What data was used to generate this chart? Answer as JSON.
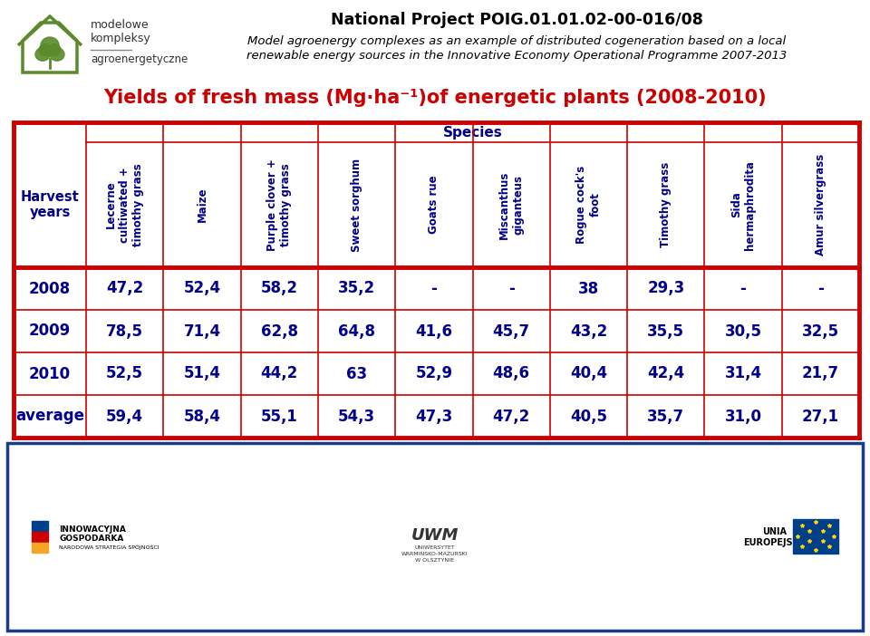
{
  "title_line1": "National Project POIG.01.01.02-00-016/08",
  "title_line2": "Model agroenergy complexes as an example of distributed cogeneration based on a local",
  "title_line3": "renewable energy sources in the Innovative Economy Operational Programme 2007-2013",
  "chart_title": "Yields of fresh mass (Mg·ha⁻¹)of energetic plants (2008-2010)",
  "species_label": "Species",
  "harvest_label": "Harvest\nyears",
  "col_headers": [
    "Lecerne\ncultiwated +\ntimothy grass",
    "Maize",
    "Purple clover +\ntimothy grass",
    "Sweet sorghum",
    "Goats rue",
    "Miscanthus\ngiganteus",
    "Rogue cock's\nfoot",
    "Timothy grass",
    "Sida\nhermaphrodita",
    "Amur silvergrass"
  ],
  "row_labels": [
    "2008",
    "2009",
    "2010",
    "average"
  ],
  "table_data": [
    [
      "47,2",
      "52,4",
      "58,2",
      "35,2",
      "-",
      "-",
      "38",
      "29,3",
      "-",
      "-"
    ],
    [
      "78,5",
      "71,4",
      "62,8",
      "64,8",
      "41,6",
      "45,7",
      "43,2",
      "35,5",
      "30,5",
      "32,5"
    ],
    [
      "52,5",
      "51,4",
      "44,2",
      "63",
      "52,9",
      "48,6",
      "40,4",
      "42,4",
      "31,4",
      "21,7"
    ],
    [
      "59,4",
      "58,4",
      "55,1",
      "54,3",
      "47,3",
      "47,2",
      "40,5",
      "35,7",
      "31,0",
      "27,1"
    ]
  ],
  "navy_blue": "#00008B",
  "red_line": "#CC0000",
  "title_color": "#000000",
  "chart_title_color": "#CC0000",
  "outer_border_color": "#1a3a8a",
  "green_logo": "#5a8a2a",
  "logo_text_color": "#333333"
}
